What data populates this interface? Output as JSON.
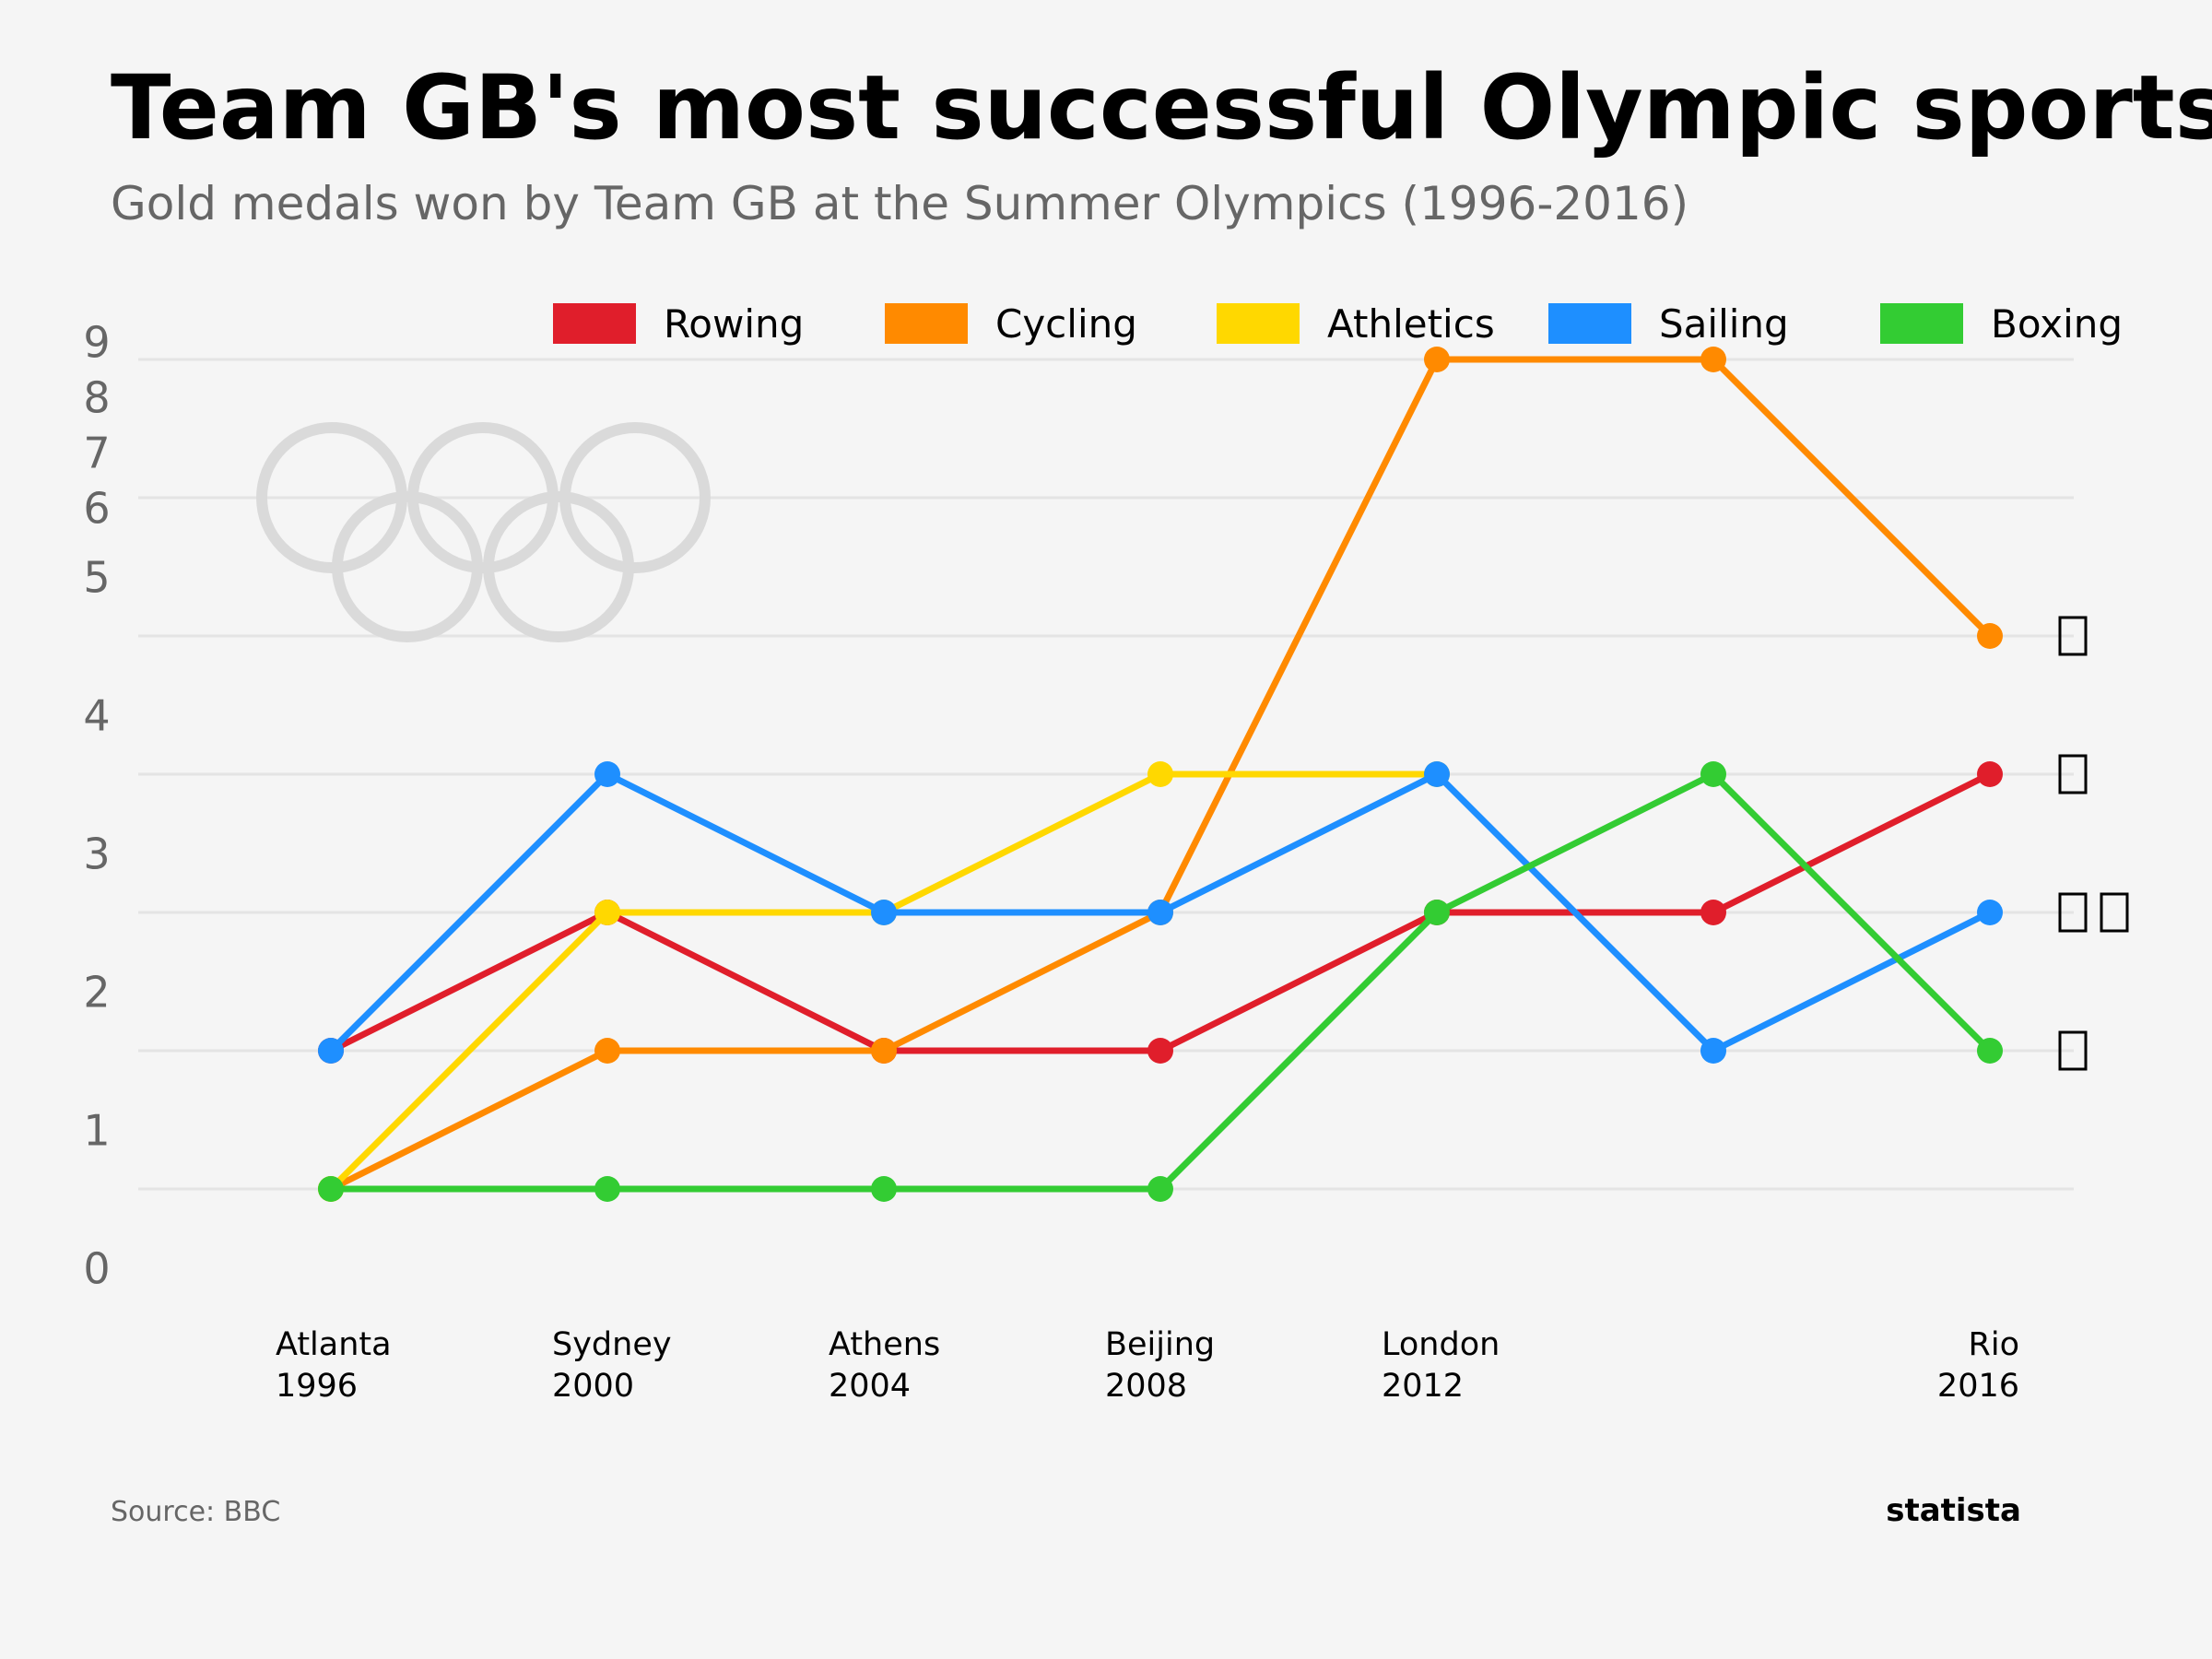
{
  "title": "Team GB's most successful Olympic sports",
  "subtitle": "Gold medals won by Team GB at the Summer Olympics (1996-2016)",
  "source": "Source: BBC",
  "brand": "statista",
  "colors": {
    "background": "#f5f5f5",
    "grid": "#e4e4e4",
    "rings": "#dadada",
    "Rowing": "#e01e2b",
    "Cycling": "#ff8a00",
    "Athletics": "#ffd800",
    "Sailing": "#1e8fff",
    "Boxing": "#33cc33"
  },
  "rings_icon": "olympic-rings-icon",
  "end_icons": [
    "bicycle-icon",
    "rowing-boat-icon",
    "sailboat-icon",
    "trophy-icon",
    "boxing-glove-icon"
  ],
  "chart_data": {
    "type": "line",
    "x_labels": [
      [
        "Atlanta",
        "1996"
      ],
      [
        "Sydney",
        "2000"
      ],
      [
        "Athens",
        "2004"
      ],
      [
        "Beijing",
        "2008"
      ],
      [
        "London",
        "2012"
      ],
      [
        "",
        ""
      ],
      [
        "Rio",
        "2016"
      ]
    ],
    "yticks": [
      "0",
      "1",
      "2",
      "3",
      "4",
      "5",
      "6",
      "7",
      "8",
      "9"
    ],
    "legend": [
      "Rowing",
      "Cycling",
      "Athletics",
      "Sailing",
      "Boxing"
    ],
    "legend_position": "top",
    "grid": true,
    "series": [
      {
        "name": "Rowing",
        "values": [
          2,
          3,
          2,
          2,
          3,
          3,
          4
        ]
      },
      {
        "name": "Cycling",
        "values": [
          1,
          2,
          2,
          3,
          7,
          7,
          5
        ]
      },
      {
        "name": "Athletics",
        "values": [
          1,
          3,
          3,
          4,
          4,
          null,
          null
        ]
      },
      {
        "name": "Sailing",
        "values": [
          2,
          4,
          3,
          3,
          4,
          2,
          3
        ]
      },
      {
        "name": "Boxing",
        "values": [
          1,
          1,
          1,
          1,
          3,
          4,
          2
        ]
      }
    ]
  }
}
